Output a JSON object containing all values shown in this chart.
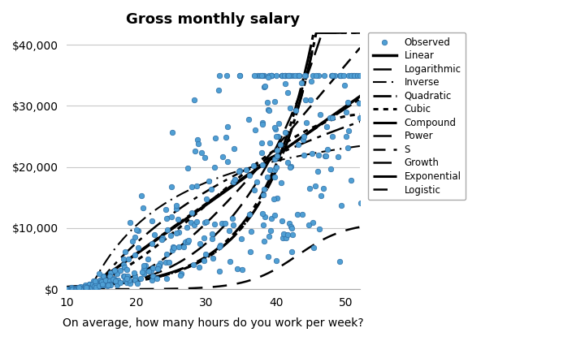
{
  "title": "Gross monthly salary",
  "xlabel": "On average, how many hours do you work per week?",
  "xlim": [
    10,
    52
  ],
  "ylim": [
    0,
    42000
  ],
  "yticks": [
    0,
    10000,
    20000,
    30000,
    40000
  ],
  "xticks": [
    10,
    20,
    30,
    40,
    50
  ],
  "dot_color": "#4f9fd4",
  "dot_edgecolor": "#2e6da4",
  "background_color": "#ffffff",
  "grid_color": "#c8c8c8"
}
